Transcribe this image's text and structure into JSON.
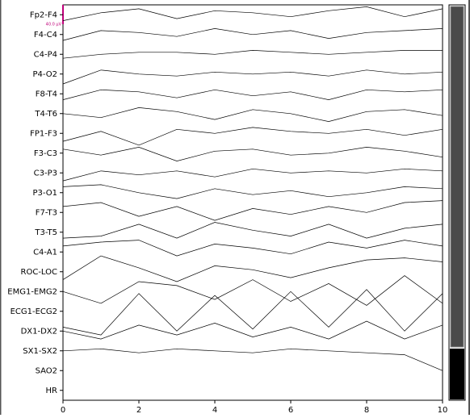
{
  "chart_data": {
    "type": "eeg",
    "scale_label": "40.0 µV",
    "categories": [
      "Fp2-F4",
      "F4-C4",
      "C4-P4",
      "P4-O2",
      "F8-T4",
      "T4-T6",
      "FP1-F3",
      "F3-C3",
      "C3-P3",
      "P3-O1",
      "F7-T3",
      "T3-T5",
      "C4-A1",
      "ROC-LOC",
      "EMG1-EMG2",
      "ECG1-ECG2",
      "DX1-DX2",
      "SX1-SX2",
      "SAO2",
      "HR"
    ],
    "x": [
      0,
      1,
      2,
      3,
      4,
      5,
      6,
      7,
      8,
      9,
      10
    ],
    "xlim": [
      0,
      10
    ],
    "xticks": [
      0,
      2,
      4,
      6,
      8,
      10
    ],
    "color": "#000000",
    "series": [
      {
        "values": [
          -0.3,
          0.1,
          0.3,
          -0.2,
          0.2,
          0.1,
          -0.1,
          0.2,
          0.4,
          -0.1,
          0.3
        ]
      },
      {
        "values": [
          -0.3,
          0.2,
          0.1,
          -0.1,
          0.3,
          0.0,
          0.2,
          -0.2,
          0.1,
          0.2,
          0.3
        ]
      },
      {
        "values": [
          -0.2,
          0.0,
          0.1,
          0.1,
          0.0,
          0.2,
          0.1,
          0.0,
          0.1,
          0.2,
          0.2
        ]
      },
      {
        "values": [
          -0.5,
          0.2,
          0.0,
          -0.1,
          0.1,
          0.0,
          0.1,
          -0.1,
          0.2,
          0.0,
          0.1
        ]
      },
      {
        "values": [
          -0.3,
          0.2,
          0.1,
          -0.2,
          0.2,
          -0.1,
          0.1,
          -0.3,
          0.2,
          0.1,
          0.2
        ]
      },
      {
        "values": [
          0.0,
          -0.2,
          0.3,
          0.1,
          -0.3,
          0.2,
          0.0,
          -0.4,
          0.1,
          0.2,
          -0.1
        ]
      },
      {
        "values": [
          -0.4,
          0.1,
          -0.6,
          0.2,
          0.0,
          0.3,
          0.1,
          0.0,
          0.2,
          -0.1,
          0.2
        ]
      },
      {
        "values": [
          0.2,
          -0.1,
          0.3,
          -0.4,
          0.1,
          0.2,
          -0.1,
          0.0,
          0.3,
          0.1,
          -0.2
        ]
      },
      {
        "values": [
          -0.4,
          0.1,
          -0.1,
          0.1,
          -0.2,
          0.2,
          0.0,
          0.1,
          0.0,
          0.2,
          0.1
        ]
      },
      {
        "values": [
          0.3,
          0.4,
          0.0,
          -0.3,
          0.2,
          -0.1,
          0.1,
          -0.2,
          0.0,
          0.3,
          0.2
        ]
      },
      {
        "values": [
          0.3,
          0.5,
          -0.2,
          0.3,
          -0.4,
          0.2,
          -0.1,
          0.3,
          0.0,
          0.5,
          0.6
        ]
      },
      {
        "values": [
          -0.3,
          -0.2,
          0.4,
          -0.3,
          0.5,
          0.1,
          -0.2,
          0.4,
          -0.3,
          0.2,
          0.4
        ]
      },
      {
        "values": [
          0.3,
          0.5,
          0.6,
          -0.2,
          0.4,
          0.2,
          -0.1,
          0.5,
          0.2,
          0.6,
          0.3
        ]
      },
      {
        "values": [
          -0.4,
          0.8,
          0.2,
          -0.5,
          0.3,
          0.1,
          -0.3,
          0.2,
          0.6,
          0.7,
          0.5
        ]
      },
      {
        "values": [
          0.0,
          -0.6,
          0.5,
          0.3,
          -0.4,
          0.6,
          -0.5,
          0.4,
          -0.7,
          0.8,
          -0.6
        ]
      },
      {
        "values": [
          -0.8,
          -1.2,
          0.9,
          -1.0,
          0.8,
          -0.9,
          1.0,
          -0.8,
          1.1,
          -1.0,
          0.9
        ]
      },
      {
        "values": [
          0.0,
          -0.4,
          0.3,
          -0.2,
          0.4,
          -0.3,
          0.2,
          -0.4,
          0.5,
          -0.4,
          0.3
        ]
      },
      {
        "values": [
          0.0,
          0.1,
          -0.1,
          0.1,
          0.0,
          -0.1,
          0.1,
          0.0,
          -0.1,
          -0.2,
          -1.0
        ]
      },
      {
        "values": [
          null,
          null,
          null,
          null,
          null,
          null,
          null,
          null,
          null,
          null,
          null
        ]
      },
      {
        "values": [
          null,
          null,
          null,
          null,
          null,
          null,
          null,
          null,
          null,
          null,
          null
        ]
      }
    ]
  }
}
